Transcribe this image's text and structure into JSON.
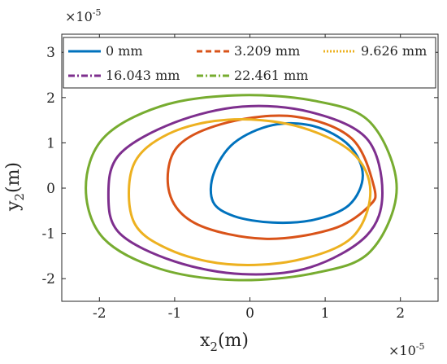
{
  "chart_data": {
    "type": "line",
    "title": "",
    "xlabel": "x",
    "xlabel_sub": "2",
    "xlabel_unit": "(m)",
    "ylabel": "y",
    "ylabel_sub": "2",
    "ylabel_unit": "(m)",
    "xlim": [
      -2.5,
      2.5
    ],
    "ylim": [
      -2.5,
      3.4
    ],
    "axis_multiplier": "×10",
    "axis_multiplier_exp": "-5",
    "xticks": [
      -2,
      -1,
      0,
      1,
      2
    ],
    "xtick_labels": [
      "-2",
      "-1",
      "0",
      "1",
      "2"
    ],
    "yticks": [
      -2,
      -1,
      0,
      1,
      2,
      3
    ],
    "ytick_labels": [
      "-2",
      "-1",
      "0",
      "1",
      "2",
      "3"
    ],
    "grid": false,
    "legend": "top",
    "series": [
      {
        "name": "0 mm",
        "color": "#0072BD",
        "dash": "solid",
        "x": [
          1.5,
          1.32,
          0.85,
          0.3,
          -0.21,
          -0.48,
          -0.49,
          -0.21,
          0.3,
          0.85,
          1.32,
          1.5
        ],
        "y": [
          0.28,
          0.94,
          1.37,
          1.39,
          1.0,
          0.33,
          -0.3,
          -0.62,
          -0.76,
          -0.7,
          -0.37,
          0.28
        ]
      },
      {
        "name": "3.209 mm",
        "color": "#D95319",
        "dash": "dashed",
        "x": [
          1.65,
          1.35,
          0.6,
          -0.3,
          -0.97,
          -1.07,
          -0.7,
          0.2,
          1.1,
          1.58,
          1.65
        ],
        "y": [
          0.02,
          1.1,
          1.58,
          1.45,
          0.9,
          -0.1,
          -0.8,
          -1.12,
          -0.9,
          -0.4,
          0.02
        ]
      },
      {
        "name": "9.626 mm",
        "color": "#EDB120",
        "dash": "dotted",
        "x": [
          1.6,
          1.35,
          0.6,
          -0.3,
          -1.08,
          -1.55,
          -1.55,
          -1.08,
          -0.3,
          0.6,
          1.35,
          1.6
        ],
        "y": [
          -0.08,
          0.8,
          1.38,
          1.51,
          1.2,
          0.5,
          -0.72,
          -1.35,
          -1.68,
          -1.6,
          -1.1,
          -0.08
        ]
      },
      {
        "name": "16.043 mm",
        "color": "#7E2F8E",
        "dash": "dashdot",
        "x": [
          1.76,
          1.55,
          0.8,
          -0.1,
          -1.0,
          -1.73,
          -1.88,
          -1.73,
          -1.0,
          -0.1,
          0.8,
          1.55,
          1.76
        ],
        "y": [
          -0.1,
          1.1,
          1.68,
          1.8,
          1.45,
          0.75,
          -0.15,
          -1.0,
          -1.62,
          -1.9,
          -1.75,
          -1.05,
          -0.1
        ]
      },
      {
        "name": "22.461 mm",
        "color": "#77AC30",
        "dash": "dashdot",
        "x": [
          1.95,
          1.6,
          0.85,
          -0.2,
          -1.2,
          -1.95,
          -2.18,
          -1.95,
          -1.2,
          -0.2,
          0.85,
          1.6,
          1.95
        ],
        "y": [
          0.0,
          1.45,
          1.93,
          2.05,
          1.8,
          1.1,
          0.0,
          -1.1,
          -1.78,
          -2.03,
          -1.88,
          -1.4,
          0.0
        ]
      }
    ]
  }
}
